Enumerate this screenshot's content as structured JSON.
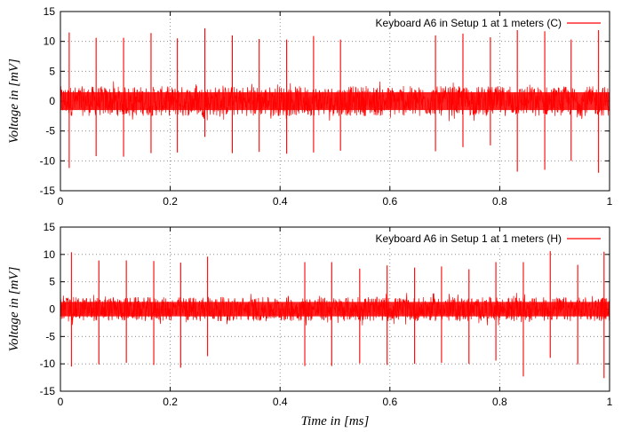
{
  "chart_data": [
    {
      "type": "line",
      "legend": "Keyboard A6 in Setup 1 at 1 meters (C)",
      "legend_position": "top-right",
      "series_color": "#ff0000",
      "grid": true,
      "xlabel": "",
      "ylabel": "Voltage in [mV]",
      "xlim": [
        0,
        1
      ],
      "ylim": [
        -15,
        15
      ],
      "xticks": [
        "0",
        "0.2",
        "0.4",
        "0.6",
        "0.8",
        "1"
      ],
      "yticks": [
        "15",
        "10",
        "5",
        "0",
        "-5",
        "-10",
        "-15"
      ],
      "noise_band": [
        -2.5,
        2.5
      ],
      "spikes": [
        {
          "x": 0.016,
          "hi": 11.5,
          "lo": -11.2
        },
        {
          "x": 0.065,
          "hi": 10.6,
          "lo": -9.2
        },
        {
          "x": 0.115,
          "hi": 10.6,
          "lo": -9.3
        },
        {
          "x": 0.165,
          "hi": 11.4,
          "lo": -8.7
        },
        {
          "x": 0.213,
          "hi": 10.5,
          "lo": -8.6
        },
        {
          "x": 0.263,
          "hi": 12.2,
          "lo": -6.0
        },
        {
          "x": 0.313,
          "hi": 11.0,
          "lo": -8.7
        },
        {
          "x": 0.362,
          "hi": 10.4,
          "lo": -8.5
        },
        {
          "x": 0.412,
          "hi": 10.3,
          "lo": -8.8
        },
        {
          "x": 0.461,
          "hi": 10.9,
          "lo": -8.6
        },
        {
          "x": 0.51,
          "hi": 10.3,
          "lo": -8.3
        },
        {
          "x": 0.683,
          "hi": 11.0,
          "lo": -8.4
        },
        {
          "x": 0.733,
          "hi": 11.3,
          "lo": -7.7
        },
        {
          "x": 0.783,
          "hi": 10.7,
          "lo": -7.4
        },
        {
          "x": 0.832,
          "hi": 11.9,
          "lo": -11.8
        },
        {
          "x": 0.882,
          "hi": 11.7,
          "lo": -11.5
        },
        {
          "x": 0.93,
          "hi": 10.3,
          "lo": -10.0
        },
        {
          "x": 0.98,
          "hi": 12.6,
          "lo": -12.0
        }
      ]
    },
    {
      "type": "line",
      "legend": "Keyboard A6 in Setup 1 at 1 meters (H)",
      "legend_position": "top-right",
      "series_color": "#ff0000",
      "grid": true,
      "xlabel": "Time in [ms]",
      "ylabel": "Voltage in [mV]",
      "xlim": [
        0,
        1
      ],
      "ylim": [
        -15,
        15
      ],
      "xticks": [
        "0",
        "0.2",
        "0.4",
        "0.6",
        "0.8",
        "1"
      ],
      "yticks": [
        "15",
        "10",
        "5",
        "0",
        "-5",
        "-10",
        "-15"
      ],
      "noise_band": [
        -2.2,
        2.2
      ],
      "spikes": [
        {
          "x": 0.02,
          "hi": 10.4,
          "lo": -10.5
        },
        {
          "x": 0.07,
          "hi": 8.9,
          "lo": -10.1
        },
        {
          "x": 0.12,
          "hi": 8.9,
          "lo": -9.8
        },
        {
          "x": 0.17,
          "hi": 8.8,
          "lo": -10.2
        },
        {
          "x": 0.219,
          "hi": 8.5,
          "lo": -10.7
        },
        {
          "x": 0.268,
          "hi": 9.6,
          "lo": -8.6
        },
        {
          "x": 0.445,
          "hi": 8.6,
          "lo": -10.4
        },
        {
          "x": 0.494,
          "hi": 8.6,
          "lo": -10.4
        },
        {
          "x": 0.545,
          "hi": 7.4,
          "lo": -9.9
        },
        {
          "x": 0.595,
          "hi": 8.0,
          "lo": -10.2
        },
        {
          "x": 0.645,
          "hi": 7.6,
          "lo": -10.0
        },
        {
          "x": 0.694,
          "hi": 7.8,
          "lo": -9.8
        },
        {
          "x": 0.744,
          "hi": 7.3,
          "lo": -10.0
        },
        {
          "x": 0.793,
          "hi": 8.6,
          "lo": -9.4
        },
        {
          "x": 0.843,
          "hi": 8.6,
          "lo": -12.3
        },
        {
          "x": 0.892,
          "hi": 10.6,
          "lo": -8.9
        },
        {
          "x": 0.942,
          "hi": 8.1,
          "lo": -10.1
        },
        {
          "x": 0.99,
          "hi": 10.5,
          "lo": -12.6
        }
      ]
    }
  ]
}
